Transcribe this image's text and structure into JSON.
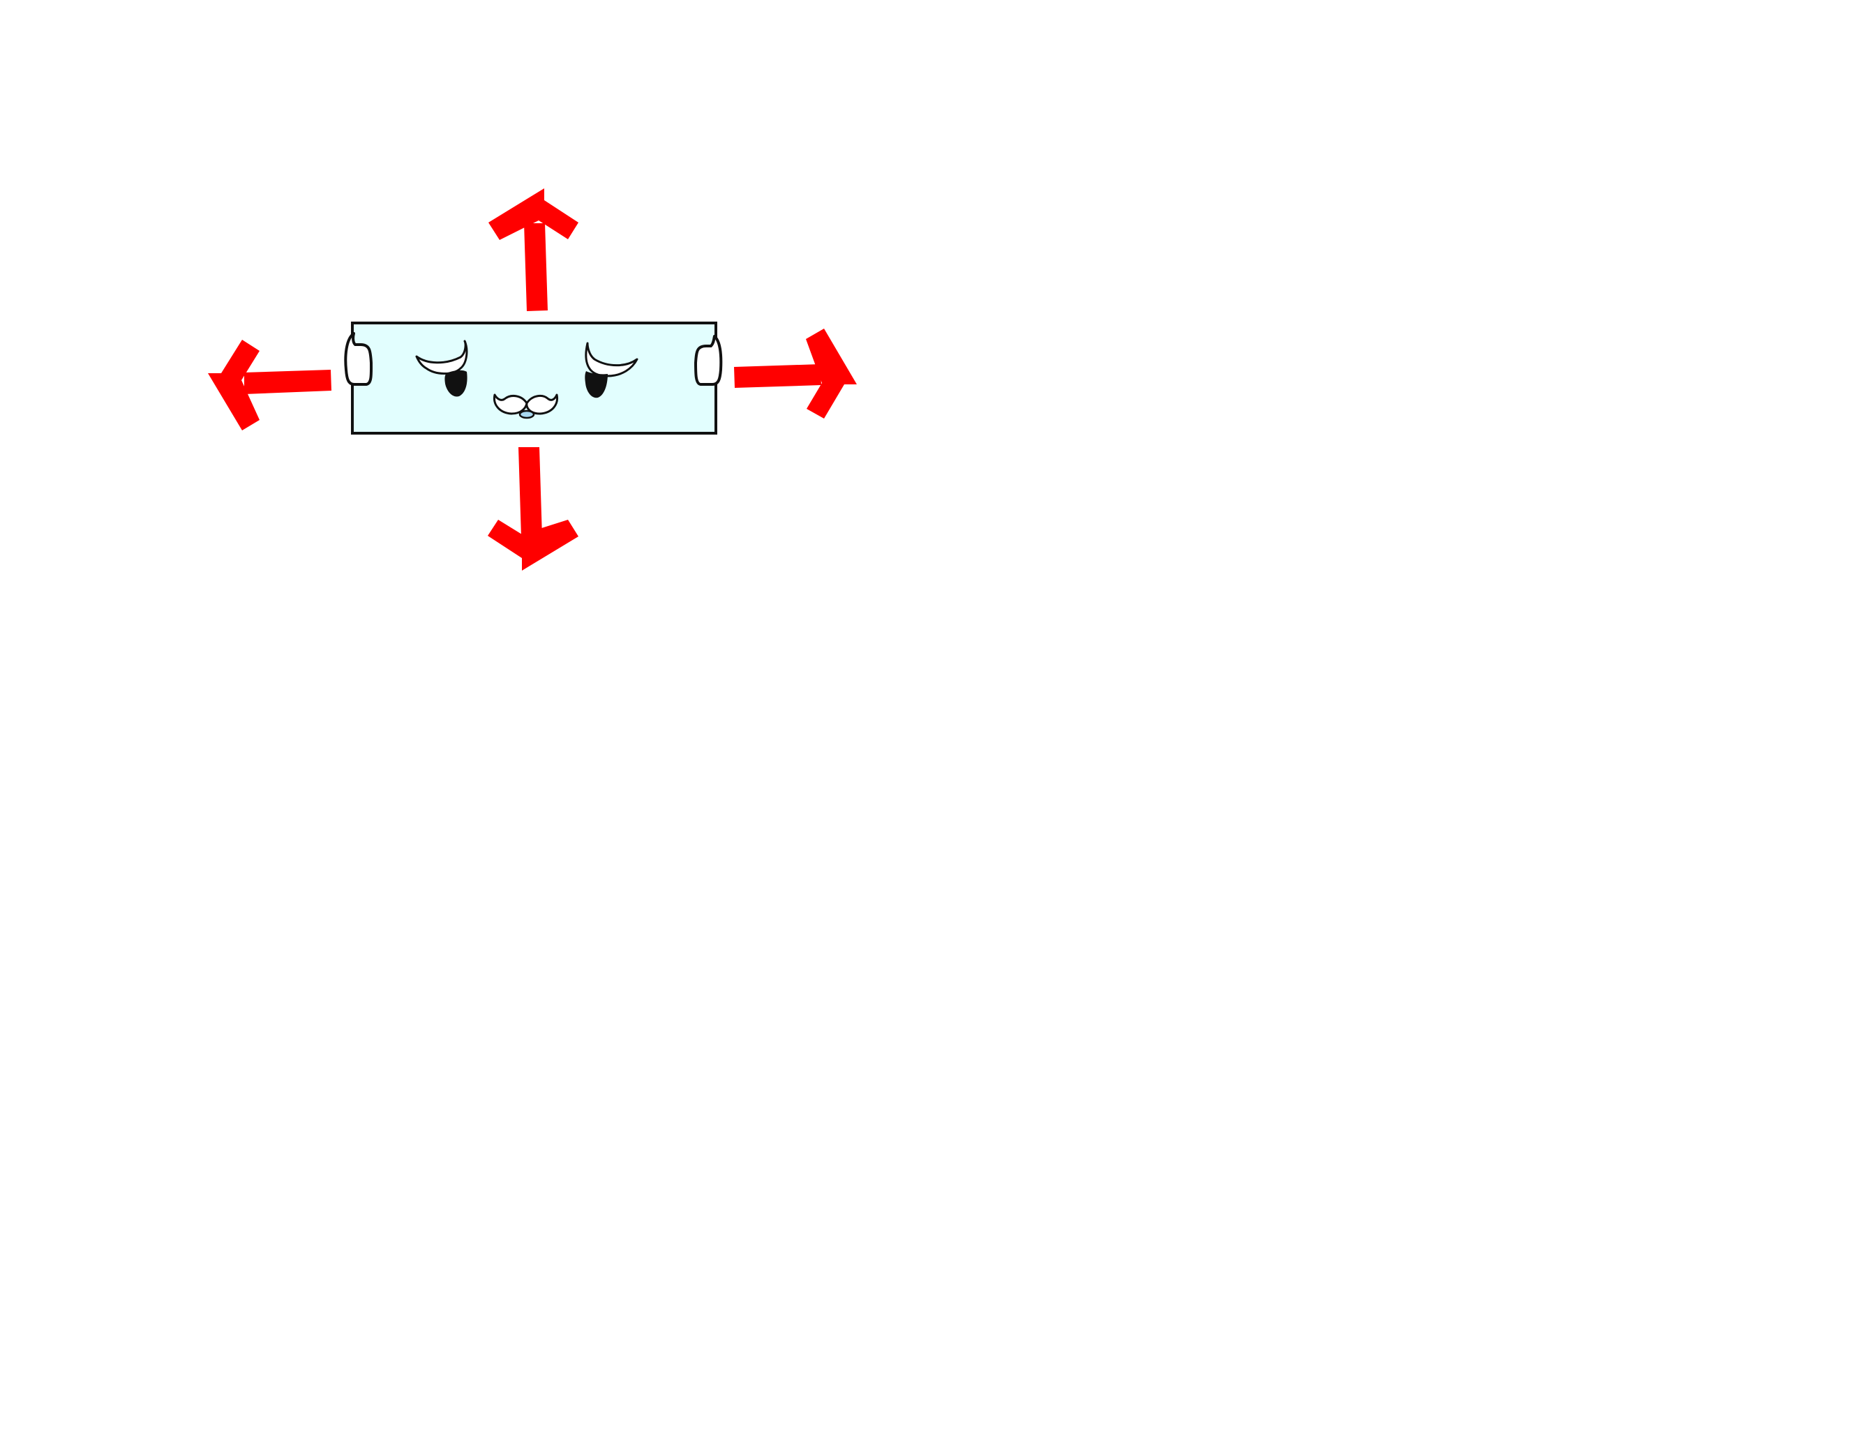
{
  "canvas": {
    "background": "#ffffff"
  },
  "character": {
    "name": "rectangular-block-character",
    "fill": "#e2fefe",
    "outline": "#111111",
    "expression": "worried",
    "eye_color": "#111111",
    "eye_white": "#ffffff"
  },
  "arrows": {
    "color": "#ff0000",
    "directions": [
      "up",
      "down",
      "left",
      "right"
    ]
  }
}
